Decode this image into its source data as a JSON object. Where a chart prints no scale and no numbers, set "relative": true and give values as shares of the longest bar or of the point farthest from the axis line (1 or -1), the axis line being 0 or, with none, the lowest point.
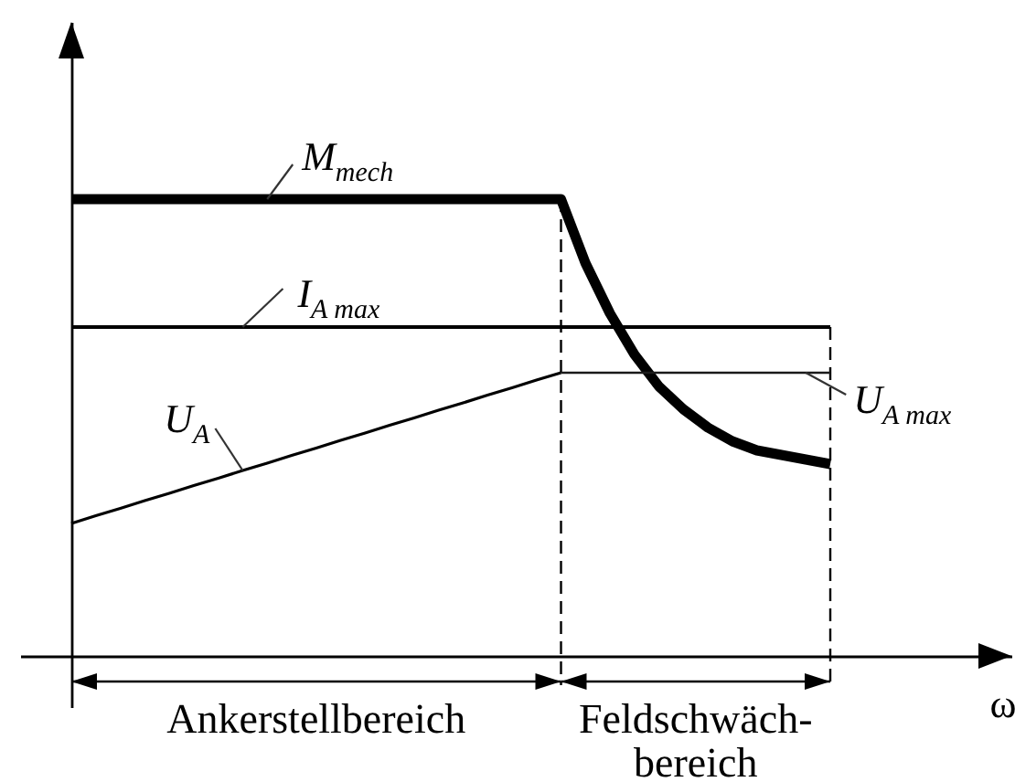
{
  "chart_data": {
    "type": "line",
    "relative": true,
    "tick_labels": false,
    "xlabel": "ω",
    "categories": [
      null,
      null,
      null,
      null,
      null,
      null,
      null,
      null,
      null,
      null,
      null,
      null,
      null,
      null,
      null,
      null,
      null,
      null,
      null,
      null,
      null,
      null,
      null,
      null,
      null,
      null,
      null,
      null,
      null,
      null,
      null,
      null
    ],
    "series": [
      {
        "name": "M$_{mech}$",
        "color": "#000000",
        "values": [
          1,
          1,
          1,
          1,
          1,
          1,
          1,
          1,
          1,
          1,
          1,
          1,
          1,
          1,
          1,
          1,
          1,
          1,
          1,
          1,
          1,
          0.86,
          0.75,
          0.66,
          0.59,
          0.54,
          0.5,
          0.47,
          0.45,
          0.44,
          0.43,
          0.42
        ]
      },
      {
        "name": "I$_{A max}$",
        "color": "#000000",
        "values": [
          0.72,
          0.72,
          0.72,
          0.72,
          0.72,
          0.72,
          0.72,
          0.72,
          0.72,
          0.72,
          0.72,
          0.72,
          0.72,
          0.72,
          0.72,
          0.72,
          0.72,
          0.72,
          0.72,
          0.72,
          0.72,
          0.72,
          0.72,
          0.72,
          0.72,
          0.72,
          0.72,
          0.72,
          0.72,
          0.72,
          0.72,
          0.72
        ]
      },
      {
        "name": "U$_{A}$",
        "color": "#000000",
        "values": [
          0.29,
          0.307,
          0.323,
          0.34,
          0.356,
          0.373,
          0.389,
          0.406,
          0.422,
          0.439,
          0.455,
          0.472,
          0.488,
          0.505,
          0.521,
          0.538,
          0.554,
          0.571,
          0.587,
          0.604,
          0.62,
          null,
          null,
          null,
          null,
          null,
          null,
          null,
          null,
          null,
          null,
          null
        ]
      },
      {
        "name": "U$_{A max}$",
        "color": "#1a1a1a",
        "values": [
          null,
          null,
          null,
          null,
          null,
          null,
          null,
          null,
          null,
          null,
          null,
          null,
          null,
          null,
          null,
          null,
          null,
          null,
          null,
          null,
          0.62,
          0.62,
          0.62,
          0.62,
          0.62,
          0.62,
          0.62,
          0.62,
          0.62,
          0.62,
          0.62,
          0.62
        ]
      }
    ],
    "annotations": [
      "Ankerstellbereich",
      "Feldschwäch-\nbereich"
    ]
  }
}
